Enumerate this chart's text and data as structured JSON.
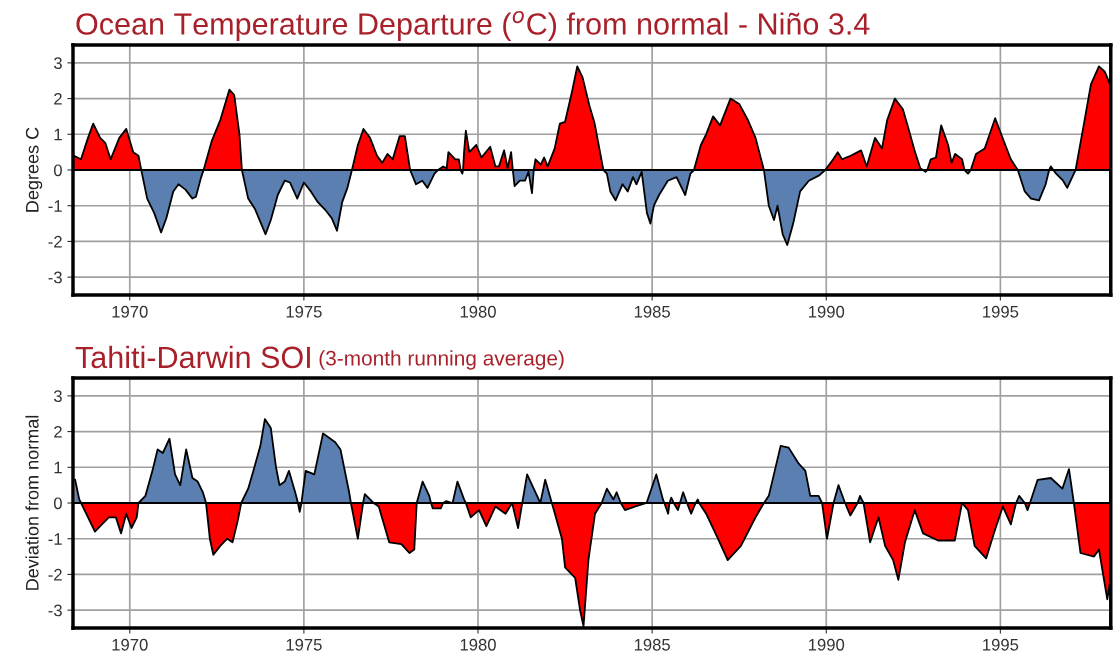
{
  "chart_data": [
    {
      "type": "area",
      "title": "Ocean Temperature Departure ($^{o}$C) from normal - Niño 3.4",
      "ylabel": "Degrees C",
      "xlim": [
        1968.37,
        1998.17
      ],
      "ylim": [
        -3.5,
        3.5
      ],
      "xticks": [
        1970,
        1975,
        1980,
        1985,
        1990,
        1995
      ],
      "yticks": [
        -3,
        -2,
        -1,
        0,
        1,
        2,
        3
      ],
      "grid": true,
      "ref_lines": [
        {
          "axis": "y",
          "value": 0,
          "color": "#000000"
        }
      ],
      "series": [
        {
          "color": "#ff0000",
          "x": [
            1968.4,
            1968.6,
            1968.8,
            1968.95,
            1969.15,
            1969.3,
            1969.45,
            1969.7,
            1969.9,
            1970.1,
            1970.25,
            1970.33,
            1972.12,
            1972.35,
            1972.6,
            1972.86,
            1973.0,
            1973.15,
            1973.22,
            1976.38,
            1976.55,
            1976.71,
            1976.9,
            1977.1,
            1977.25,
            1977.4,
            1977.55,
            1977.75,
            1977.9,
            1978.05,
            1978.85,
            1979.0,
            1979.1,
            1979.15,
            1979.35,
            1979.45,
            1979.5,
            1979.57,
            1979.6,
            1979.65,
            1979.75,
            1979.95,
            1980.1,
            1980.35,
            1980.5,
            1980.6,
            1980.75,
            1980.85,
            1980.95,
            1981.0,
            1981.6,
            1981.65,
            1981.8,
            1981.9,
            1982.0,
            1982.2,
            1982.35,
            1982.5,
            1982.7,
            1982.85,
            1983.0,
            1983.2,
            1983.35,
            1983.6,
            1986.2,
            1986.4,
            1986.55,
            1986.75,
            1986.95,
            1987.25,
            1987.5,
            1987.75,
            1987.97,
            1988.21,
            1989.97,
            1990.2,
            1990.33,
            1990.45,
            1990.7,
            1991.0,
            1991.16,
            1991.4,
            1991.6,
            1991.75,
            1991.97,
            1992.2,
            1992.35,
            1992.55,
            1992.7,
            1992.78,
            1992.9,
            1993.0,
            1993.15,
            1993.3,
            1993.5,
            1993.6,
            1993.7,
            1993.9,
            1993.97,
            1994.15,
            1994.3,
            1994.55,
            1994.85,
            1995.1,
            1995.3,
            1995.5,
            1996.4,
            1996.45,
            1996.52,
            1997.16,
            1997.4,
            1997.6,
            1997.83,
            1998.0,
            1998.15
          ],
          "values": [
            0.4,
            0.3,
            0.9,
            1.3,
            0.9,
            0.75,
            0.3,
            0.9,
            1.15,
            0.5,
            0.4,
            0,
            0,
            0.8,
            1.4,
            2.25,
            2.1,
            1.0,
            0,
            0,
            0.7,
            1.15,
            0.9,
            0.4,
            0.2,
            0.45,
            0.3,
            0.95,
            0.95,
            0,
            0,
            0.1,
            0.05,
            0.5,
            0.3,
            0.3,
            0,
            0,
            0.5,
            1.1,
            0.5,
            0.7,
            0.35,
            0.65,
            0.1,
            0.1,
            0.55,
            0.05,
            0.5,
            0,
            0,
            0.3,
            0.15,
            0.35,
            0.1,
            0.6,
            1.3,
            1.35,
            2.2,
            2.9,
            2.6,
            1.8,
            1.3,
            0,
            0,
            0.7,
            1.0,
            1.5,
            1.25,
            2.0,
            1.85,
            1.4,
            0.9,
            0,
            0,
            0.3,
            0.5,
            0.3,
            0.4,
            0.55,
            0.1,
            0.9,
            0.6,
            1.4,
            2.0,
            1.7,
            1.2,
            0.5,
            0.05,
            0,
            0,
            0.3,
            0.35,
            1.25,
            0.7,
            0.2,
            0.45,
            0.3,
            0,
            0,
            0.45,
            0.6,
            1.45,
            0.8,
            0.3,
            0,
            0,
            0.1,
            0,
            0,
            1.3,
            2.4,
            2.9,
            2.75,
            2.4
          ]
        },
        {
          "color": "#5a7fb0",
          "x": [
            1970.33,
            1970.5,
            1970.7,
            1970.9,
            1971.05,
            1971.25,
            1971.4,
            1971.6,
            1971.8,
            1971.9,
            1972.05,
            1972.12,
            1973.22,
            1973.4,
            1973.6,
            1973.9,
            1974.05,
            1974.25,
            1974.45,
            1974.6,
            1974.81,
            1975.0,
            1975.2,
            1975.4,
            1975.6,
            1975.8,
            1975.95,
            1976.1,
            1976.25,
            1976.38,
            1978.05,
            1978.22,
            1978.4,
            1978.55,
            1978.75,
            1978.85,
            1979.5,
            1979.55,
            1979.57,
            1981.0,
            1981.05,
            1981.2,
            1981.35,
            1981.45,
            1981.55,
            1981.6,
            1983.6,
            1983.7,
            1983.8,
            1983.95,
            1984.15,
            1984.3,
            1984.45,
            1984.55,
            1984.7,
            1984.85,
            1984.95,
            1985.05,
            1985.2,
            1985.45,
            1985.7,
            1985.95,
            1986.1,
            1986.2,
            1988.21,
            1988.35,
            1988.5,
            1988.6,
            1988.75,
            1988.88,
            1989.05,
            1989.25,
            1989.5,
            1989.8,
            1989.97,
            1992.78,
            1992.85,
            1992.9,
            1993.97,
            1994.07,
            1994.15,
            1995.5,
            1995.7,
            1995.88,
            1996.11,
            1996.3,
            1996.4,
            1996.52,
            1996.6,
            1996.8,
            1996.92,
            1997.16
          ],
          "values": [
            0,
            -0.8,
            -1.2,
            -1.75,
            -1.35,
            -0.6,
            -0.4,
            -0.55,
            -0.8,
            -0.75,
            -0.2,
            0,
            0,
            -0.8,
            -1.1,
            -1.8,
            -1.4,
            -0.7,
            -0.3,
            -0.35,
            -0.8,
            -0.35,
            -0.6,
            -0.9,
            -1.1,
            -1.35,
            -1.7,
            -0.9,
            -0.5,
            0,
            0,
            -0.4,
            -0.3,
            -0.5,
            -0.1,
            0,
            0,
            -0.1,
            0,
            0,
            -0.45,
            -0.3,
            -0.3,
            -0.05,
            -0.65,
            0,
            0,
            -0.1,
            -0.6,
            -0.85,
            -0.4,
            -0.6,
            -0.2,
            -0.4,
            -0.05,
            -1.2,
            -1.5,
            -1.0,
            -0.7,
            -0.3,
            -0.2,
            -0.7,
            -0.1,
            0,
            0,
            -1.0,
            -1.4,
            -1.0,
            -1.8,
            -2.1,
            -1.5,
            -0.6,
            -0.3,
            -0.15,
            0,
            0,
            -0.05,
            0,
            0,
            -0.1,
            0,
            0,
            -0.6,
            -0.8,
            -0.85,
            -0.4,
            0,
            0,
            -0.1,
            -0.3,
            -0.5,
            0
          ]
        }
      ]
    },
    {
      "type": "area",
      "title": "Tahiti-Darwin SOI",
      "subtitle": "(3-month running average)",
      "ylabel": "Deviation from normal",
      "xlim": [
        1968.37,
        1998.17
      ],
      "ylim": [
        -3.5,
        3.5
      ],
      "xticks": [
        1970,
        1975,
        1980,
        1985,
        1990,
        1995
      ],
      "yticks": [
        -3,
        -2,
        -1,
        0,
        1,
        2,
        3
      ],
      "grid": true,
      "ref_lines": [
        {
          "axis": "y",
          "value": 0,
          "color": "#000000"
        }
      ],
      "series": [
        {
          "color": "#5a7fb0",
          "x": [
            1968.43,
            1968.55,
            1968.6,
            1970.25,
            1970.45,
            1970.65,
            1970.8,
            1970.95,
            1971.14,
            1971.3,
            1971.45,
            1971.62,
            1971.8,
            1971.95,
            1972.1,
            1972.19,
            1973.2,
            1973.4,
            1973.55,
            1973.75,
            1973.88,
            1974.05,
            1974.2,
            1974.3,
            1974.45,
            1974.57,
            1974.75,
            1974.83,
            1974.93,
            1975.05,
            1975.3,
            1975.55,
            1975.9,
            1976.05,
            1976.3,
            1976.35,
            1976.7,
            1976.75,
            1976.95,
            1977.0,
            1978.24,
            1978.41,
            1978.6,
            1978.65,
            1979.0,
            1979.08,
            1979.27,
            1979.41,
            1979.6,
            1979.65,
            1980.98,
            1981.27,
            1981.41,
            1981.6,
            1981.79,
            1981.93,
            1982.12,
            1983.55,
            1983.7,
            1983.89,
            1983.98,
            1984.1,
            1984.84,
            1985.12,
            1985.31,
            1985.35,
            1985.5,
            1985.55,
            1985.62,
            1985.8,
            1985.89,
            1986.0,
            1986.25,
            1986.31,
            1986.35,
            1988.21,
            1988.35,
            1988.69,
            1988.92,
            1989.21,
            1989.4,
            1989.54,
            1989.78,
            1989.88,
            1990.21,
            1990.35,
            1990.54,
            1990.9,
            1990.97,
            1991.07,
            1995.45,
            1995.54,
            1995.7,
            1995.85,
            1996.07,
            1996.45,
            1996.78,
            1996.97,
            1997.11
          ],
          "values": [
            0.65,
            0.1,
            0,
            0,
            0.2,
            0.9,
            1.5,
            1.4,
            1.8,
            0.8,
            0.5,
            1.5,
            0.7,
            0.6,
            0.3,
            0,
            0,
            0.4,
            0.9,
            1.6,
            2.35,
            2.1,
            1.0,
            0.5,
            0.6,
            0.9,
            0.3,
            0,
            0,
            0.9,
            0.8,
            1.95,
            1.7,
            1.5,
            0.3,
            0,
            0,
            0.25,
            0.05,
            0,
            0,
            0.6,
            0.2,
            0,
            0,
            0.05,
            0,
            0.6,
            0.1,
            0,
            0,
            0,
            0.8,
            0.4,
            0,
            0.65,
            0,
            0,
            0.4,
            0.1,
            0.3,
            0,
            0,
            0.8,
            0.1,
            0,
            0,
            0.15,
            0,
            0,
            0.3,
            0,
            0,
            0.1,
            0,
            0,
            0.2,
            1.6,
            1.55,
            1.1,
            0.9,
            0.2,
            0.2,
            0,
            0,
            0.5,
            0,
            0,
            0.2,
            0,
            0,
            0.2,
            0,
            0,
            0.65,
            0.7,
            0.4,
            0.95,
            0
          ]
        },
        {
          "color": "#ff0000",
          "x": [
            1968.6,
            1968.7,
            1968.85,
            1969.0,
            1969.2,
            1969.4,
            1969.6,
            1969.75,
            1969.9,
            1970.05,
            1970.2,
            1970.25,
            1972.19,
            1972.3,
            1972.4,
            1972.6,
            1972.8,
            1972.95,
            1973.1,
            1973.2,
            1974.83,
            1974.88,
            1974.93,
            1976.35,
            1976.55,
            1976.7,
            1977.0,
            1977.15,
            1977.45,
            1977.8,
            1978.03,
            1978.17,
            1978.24,
            1978.65,
            1978.7,
            1978.93,
            1979.0,
            1979.65,
            1979.79,
            1980.03,
            1980.24,
            1980.5,
            1980.79,
            1980.98,
            1981.15,
            1981.27,
            1982.12,
            1982.41,
            1982.5,
            1982.79,
            1982.93,
            1983.03,
            1983.17,
            1983.36,
            1983.55,
            1984.1,
            1984.22,
            1984.5,
            1984.84,
            1985.35,
            1985.46,
            1985.5,
            1985.62,
            1985.74,
            1985.8,
            1986.0,
            1986.12,
            1986.25,
            1986.35,
            1986.55,
            1986.89,
            1987.17,
            1987.55,
            1987.97,
            1988.21,
            1989.88,
            1990.02,
            1990.21,
            1990.54,
            1990.69,
            1990.9,
            1991.07,
            1991.26,
            1991.5,
            1991.69,
            1991.92,
            1992.07,
            1992.26,
            1992.54,
            1992.78,
            1993.21,
            1993.69,
            1993.9,
            1994.07,
            1994.26,
            1994.59,
            1994.83,
            1995.07,
            1995.3,
            1995.45,
            1995.7,
            1995.78,
            1995.85,
            1997.11,
            1997.3,
            1997.69,
            1997.83,
            1998.07,
            1998.15
          ],
          "values": [
            0,
            -0.2,
            -0.5,
            -0.8,
            -0.6,
            -0.4,
            -0.4,
            -0.85,
            -0.3,
            -0.7,
            -0.4,
            0,
            0,
            -1.0,
            -1.45,
            -1.2,
            -1.0,
            -1.1,
            -0.5,
            0,
            0,
            -0.25,
            0,
            0,
            -1.0,
            0,
            0,
            -0.1,
            -1.1,
            -1.15,
            -1.4,
            -1.3,
            0,
            0,
            -0.15,
            -0.15,
            0,
            0,
            -0.4,
            -0.2,
            -0.65,
            -0.1,
            -0.3,
            0,
            -0.7,
            0,
            0,
            -1.0,
            -1.8,
            -2.1,
            -3.0,
            -3.45,
            -1.6,
            -0.3,
            0,
            0,
            -0.2,
            -0.1,
            0,
            0,
            -0.3,
            0,
            0,
            -0.2,
            0,
            0,
            -0.3,
            0,
            0,
            -0.3,
            -1.0,
            -1.6,
            -1.2,
            -0.4,
            0,
            0,
            -1.0,
            0,
            0,
            -0.35,
            0,
            0,
            -1.1,
            -0.4,
            -1.2,
            -1.6,
            -2.15,
            -1.1,
            -0.2,
            -0.85,
            -1.05,
            -1.05,
            0,
            -0.2,
            -1.2,
            -1.55,
            -0.8,
            -0.1,
            -0.6,
            0,
            0,
            -0.2,
            0,
            0,
            -1.4,
            -1.5,
            -1.3,
            -2.7,
            -2.2
          ]
        }
      ]
    }
  ]
}
